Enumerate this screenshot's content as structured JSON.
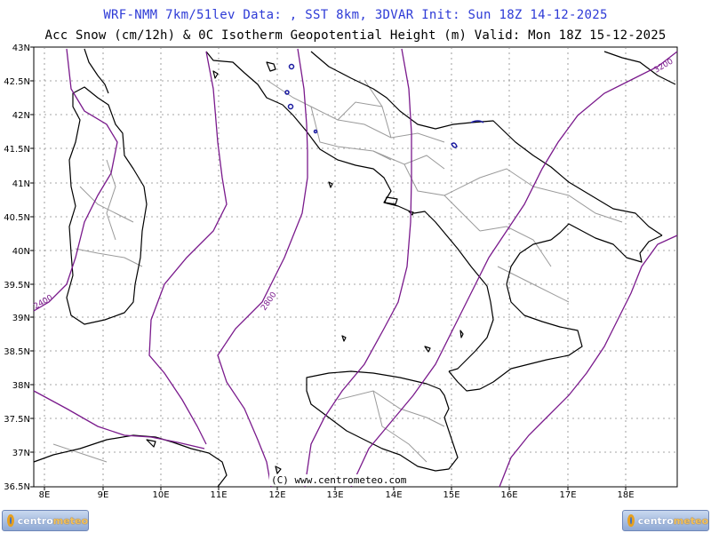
{
  "header": {
    "title_line1": "WRF-NMM 7km/51lev  Data: , SST 8km, 3DVAR  Init: Sun 18Z 14-12-2025",
    "title_line2": "Acc Snow (cm/12h) & 0C Isotherm Geopotential Height (m)  Valid: Mon 18Z 15-12-2025"
  },
  "map": {
    "lat_labels": [
      "43N",
      "42.5N",
      "42N",
      "41.5N",
      "41N",
      "40.5N",
      "40N",
      "39.5N",
      "39N",
      "38.5N",
      "38N",
      "37.5N",
      "37N",
      "36.5N"
    ],
    "lon_labels": [
      "8E",
      "9E",
      "10E",
      "11E",
      "12E",
      "13E",
      "14E",
      "15E",
      "16E",
      "17E",
      "18E"
    ],
    "contour_labels": [
      "2400",
      "2800",
      "3200"
    ],
    "credit": "(C) www.centrometeo.com",
    "colors": {
      "contour": "#7a1a8c",
      "coast": "#000000",
      "border": "#9a9a9a",
      "snow": "#1a1aa0",
      "grid": "#888888"
    }
  },
  "footer": {
    "logo_left": {
      "part1": "centro",
      "part2": "meteo"
    },
    "logo_right": {
      "part1": "centro",
      "part2": "meteo"
    }
  }
}
